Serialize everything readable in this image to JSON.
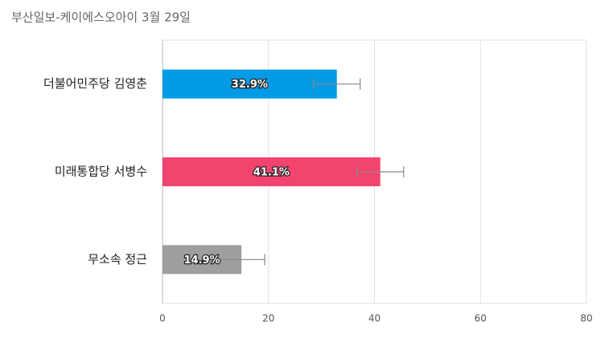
{
  "chart_data": {
    "type": "bar",
    "orientation": "horizontal",
    "title": "부산일보-케이에스오아이 3월 29일",
    "categories": [
      "더불어민주당 김영춘",
      "미래통합당 서병수",
      "무소속 정근"
    ],
    "values": [
      32.9,
      41.1,
      14.9
    ],
    "value_labels": [
      "32.9%",
      "41.1%",
      "14.9%"
    ],
    "errors": [
      4.4,
      4.4,
      4.4
    ],
    "colors": [
      "#039be5",
      "#f2446f",
      "#9e9e9e"
    ],
    "xlim": [
      0,
      80
    ],
    "xticks": [
      0,
      20,
      40,
      60,
      80
    ],
    "grid": true
  }
}
